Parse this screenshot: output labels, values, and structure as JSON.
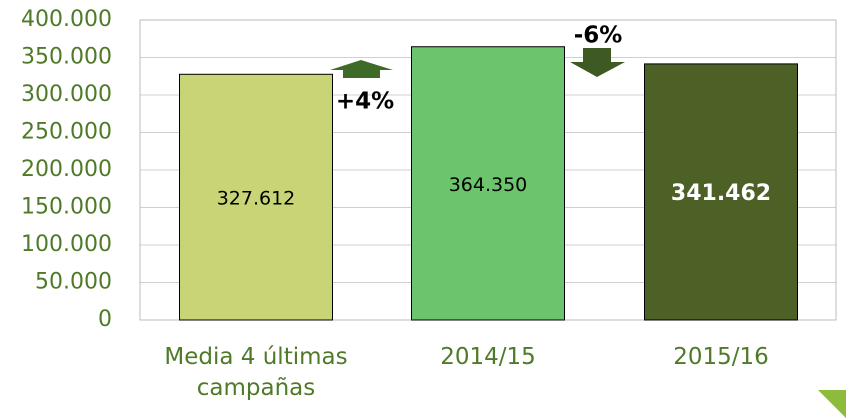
{
  "chart_data": {
    "type": "bar",
    "categories": [
      "Media 4 últimas campañas",
      "2014/15",
      "2015/16"
    ],
    "values": [
      327612,
      364350,
      341462
    ],
    "value_labels": [
      "327.612",
      "364.350",
      "341.462"
    ],
    "colors": [
      "#c8d475",
      "#6cc46c",
      "#4d6127"
    ],
    "value_label_colors": [
      "#000000",
      "#000000",
      "#ffffff"
    ],
    "ylim": [
      0,
      400000
    ],
    "yticks": [
      0,
      {
        "value": 50000,
        "label": "50.000"
      },
      {
        "value": 100000,
        "label": "100.000"
      },
      {
        "value": 150000,
        "label": "150.000"
      },
      {
        "value": 200000,
        "label": "200.000"
      },
      {
        "value": 250000,
        "label": "250.000"
      },
      {
        "value": 300000,
        "label": "300.000"
      },
      {
        "value": 350000,
        "label": "350.000"
      },
      {
        "value": 400000,
        "label": "400.000"
      }
    ],
    "grid": true,
    "annotations": [
      "+4%",
      "-6%"
    ]
  }
}
